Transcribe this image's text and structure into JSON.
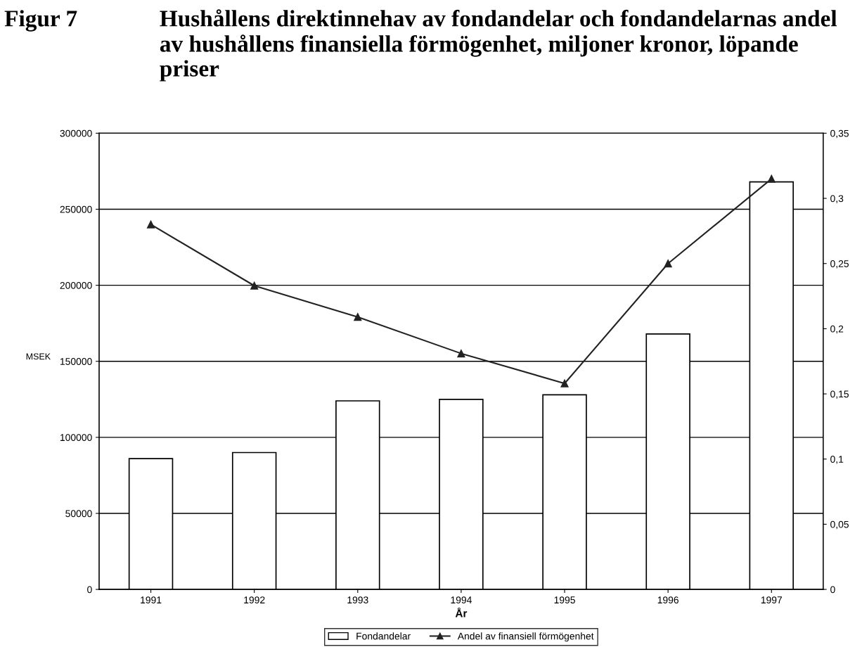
{
  "chart_data": {
    "type": "bar",
    "title": "Hushållens direktinnehav av fondandelar och fondandelarnas andel av hushållens finansiella förmögenhet, miljoner kronor, löpande priser",
    "annotations": [
      "Figur 7"
    ],
    "xlabel": "År",
    "ylabel": "MSEK",
    "categories": [
      "1991",
      "1992",
      "1993",
      "1994",
      "1995",
      "1996",
      "1997"
    ],
    "series": [
      {
        "name": "Fondandelar",
        "color": "#ffffff",
        "values": [
          86000,
          90000,
          124000,
          125000,
          128000,
          168000,
          268000
        ]
      },
      {
        "name": "Andel av finansiell förmögenhet",
        "type": "line",
        "axis": "y2",
        "color": "#222222",
        "marker": "triangle",
        "values": [
          0.28,
          0.233,
          0.209,
          0.181,
          0.158,
          0.25,
          0.315
        ]
      }
    ],
    "ylim": [
      0,
      300000
    ],
    "yticks": [
      0,
      50000,
      100000,
      150000,
      200000,
      250000,
      300000
    ],
    "y2lim": [
      0,
      0.35
    ],
    "y2ticks": [
      0,
      {
        "value": 0.05,
        "label": "0,05"
      },
      {
        "value": 0.1,
        "label": "0,1"
      },
      {
        "value": 0.15,
        "label": "0,15"
      },
      {
        "value": 0.2,
        "label": "0,2"
      },
      {
        "value": 0.25,
        "label": "0,25"
      },
      {
        "value": 0.3,
        "label": "0,3"
      },
      {
        "value": 0.35,
        "label": "0,35"
      }
    ],
    "grid": "y",
    "legend": "bottom"
  }
}
